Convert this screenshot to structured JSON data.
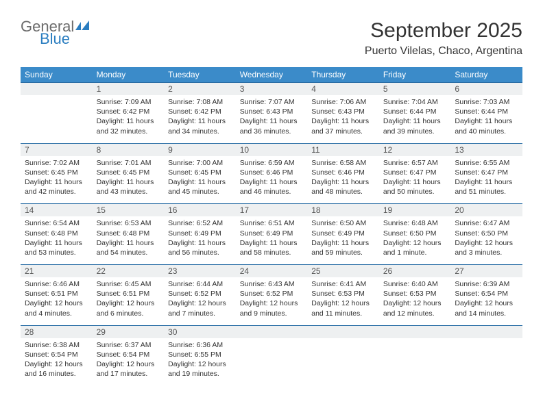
{
  "brand": {
    "general": "General",
    "blue": "Blue"
  },
  "title": "September 2025",
  "location": "Puerto Vilelas, Chaco, Argentina",
  "colors": {
    "header_bg": "#3b8bc9",
    "daynum_bg": "#eef0f1",
    "rule": "#2a6ea6",
    "logo_blue": "#2a7dc0",
    "logo_gray": "#6b6b6b"
  },
  "weekdays": [
    "Sunday",
    "Monday",
    "Tuesday",
    "Wednesday",
    "Thursday",
    "Friday",
    "Saturday"
  ],
  "weeks": [
    {
      "nums": [
        "",
        "1",
        "2",
        "3",
        "4",
        "5",
        "6"
      ],
      "cells": [
        null,
        {
          "sunrise": "Sunrise: 7:09 AM",
          "sunset": "Sunset: 6:42 PM",
          "daylight": "Daylight: 11 hours and 32 minutes."
        },
        {
          "sunrise": "Sunrise: 7:08 AM",
          "sunset": "Sunset: 6:42 PM",
          "daylight": "Daylight: 11 hours and 34 minutes."
        },
        {
          "sunrise": "Sunrise: 7:07 AM",
          "sunset": "Sunset: 6:43 PM",
          "daylight": "Daylight: 11 hours and 36 minutes."
        },
        {
          "sunrise": "Sunrise: 7:06 AM",
          "sunset": "Sunset: 6:43 PM",
          "daylight": "Daylight: 11 hours and 37 minutes."
        },
        {
          "sunrise": "Sunrise: 7:04 AM",
          "sunset": "Sunset: 6:44 PM",
          "daylight": "Daylight: 11 hours and 39 minutes."
        },
        {
          "sunrise": "Sunrise: 7:03 AM",
          "sunset": "Sunset: 6:44 PM",
          "daylight": "Daylight: 11 hours and 40 minutes."
        }
      ]
    },
    {
      "nums": [
        "7",
        "8",
        "9",
        "10",
        "11",
        "12",
        "13"
      ],
      "cells": [
        {
          "sunrise": "Sunrise: 7:02 AM",
          "sunset": "Sunset: 6:45 PM",
          "daylight": "Daylight: 11 hours and 42 minutes."
        },
        {
          "sunrise": "Sunrise: 7:01 AM",
          "sunset": "Sunset: 6:45 PM",
          "daylight": "Daylight: 11 hours and 43 minutes."
        },
        {
          "sunrise": "Sunrise: 7:00 AM",
          "sunset": "Sunset: 6:45 PM",
          "daylight": "Daylight: 11 hours and 45 minutes."
        },
        {
          "sunrise": "Sunrise: 6:59 AM",
          "sunset": "Sunset: 6:46 PM",
          "daylight": "Daylight: 11 hours and 46 minutes."
        },
        {
          "sunrise": "Sunrise: 6:58 AM",
          "sunset": "Sunset: 6:46 PM",
          "daylight": "Daylight: 11 hours and 48 minutes."
        },
        {
          "sunrise": "Sunrise: 6:57 AM",
          "sunset": "Sunset: 6:47 PM",
          "daylight": "Daylight: 11 hours and 50 minutes."
        },
        {
          "sunrise": "Sunrise: 6:55 AM",
          "sunset": "Sunset: 6:47 PM",
          "daylight": "Daylight: 11 hours and 51 minutes."
        }
      ]
    },
    {
      "nums": [
        "14",
        "15",
        "16",
        "17",
        "18",
        "19",
        "20"
      ],
      "cells": [
        {
          "sunrise": "Sunrise: 6:54 AM",
          "sunset": "Sunset: 6:48 PM",
          "daylight": "Daylight: 11 hours and 53 minutes."
        },
        {
          "sunrise": "Sunrise: 6:53 AM",
          "sunset": "Sunset: 6:48 PM",
          "daylight": "Daylight: 11 hours and 54 minutes."
        },
        {
          "sunrise": "Sunrise: 6:52 AM",
          "sunset": "Sunset: 6:49 PM",
          "daylight": "Daylight: 11 hours and 56 minutes."
        },
        {
          "sunrise": "Sunrise: 6:51 AM",
          "sunset": "Sunset: 6:49 PM",
          "daylight": "Daylight: 11 hours and 58 minutes."
        },
        {
          "sunrise": "Sunrise: 6:50 AM",
          "sunset": "Sunset: 6:49 PM",
          "daylight": "Daylight: 11 hours and 59 minutes."
        },
        {
          "sunrise": "Sunrise: 6:48 AM",
          "sunset": "Sunset: 6:50 PM",
          "daylight": "Daylight: 12 hours and 1 minute."
        },
        {
          "sunrise": "Sunrise: 6:47 AM",
          "sunset": "Sunset: 6:50 PM",
          "daylight": "Daylight: 12 hours and 3 minutes."
        }
      ]
    },
    {
      "nums": [
        "21",
        "22",
        "23",
        "24",
        "25",
        "26",
        "27"
      ],
      "cells": [
        {
          "sunrise": "Sunrise: 6:46 AM",
          "sunset": "Sunset: 6:51 PM",
          "daylight": "Daylight: 12 hours and 4 minutes."
        },
        {
          "sunrise": "Sunrise: 6:45 AM",
          "sunset": "Sunset: 6:51 PM",
          "daylight": "Daylight: 12 hours and 6 minutes."
        },
        {
          "sunrise": "Sunrise: 6:44 AM",
          "sunset": "Sunset: 6:52 PM",
          "daylight": "Daylight: 12 hours and 7 minutes."
        },
        {
          "sunrise": "Sunrise: 6:43 AM",
          "sunset": "Sunset: 6:52 PM",
          "daylight": "Daylight: 12 hours and 9 minutes."
        },
        {
          "sunrise": "Sunrise: 6:41 AM",
          "sunset": "Sunset: 6:53 PM",
          "daylight": "Daylight: 12 hours and 11 minutes."
        },
        {
          "sunrise": "Sunrise: 6:40 AM",
          "sunset": "Sunset: 6:53 PM",
          "daylight": "Daylight: 12 hours and 12 minutes."
        },
        {
          "sunrise": "Sunrise: 6:39 AM",
          "sunset": "Sunset: 6:54 PM",
          "daylight": "Daylight: 12 hours and 14 minutes."
        }
      ]
    },
    {
      "nums": [
        "28",
        "29",
        "30",
        "",
        "",
        "",
        ""
      ],
      "cells": [
        {
          "sunrise": "Sunrise: 6:38 AM",
          "sunset": "Sunset: 6:54 PM",
          "daylight": "Daylight: 12 hours and 16 minutes."
        },
        {
          "sunrise": "Sunrise: 6:37 AM",
          "sunset": "Sunset: 6:54 PM",
          "daylight": "Daylight: 12 hours and 17 minutes."
        },
        {
          "sunrise": "Sunrise: 6:36 AM",
          "sunset": "Sunset: 6:55 PM",
          "daylight": "Daylight: 12 hours and 19 minutes."
        },
        null,
        null,
        null,
        null
      ]
    }
  ]
}
